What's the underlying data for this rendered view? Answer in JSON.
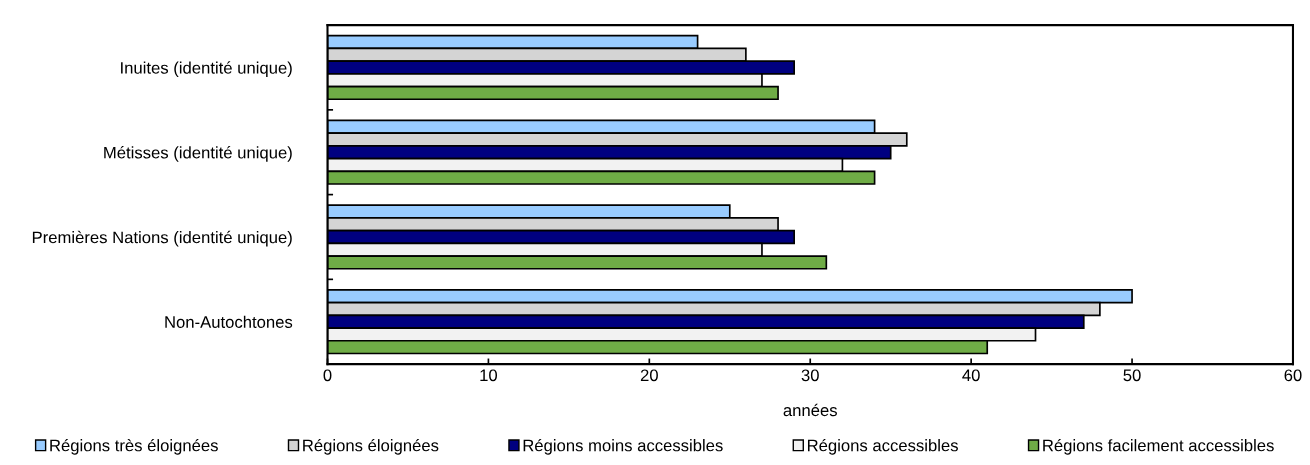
{
  "chart_data": {
    "type": "bar",
    "orientation": "horizontal",
    "xlabel": "années",
    "categories": [
      "Inuites (identité unique)",
      "Métisses (identité unique)",
      "Premières Nations (identité unique)",
      "Non-Autochtones"
    ],
    "series": [
      {
        "name": "Régions très éloignées",
        "color": "#99ccff",
        "values": [
          23,
          34,
          25,
          50
        ]
      },
      {
        "name": "Régions éloignées",
        "color": "#d4d4d4",
        "values": [
          26,
          36,
          28,
          48
        ]
      },
      {
        "name": "Régions moins accessibles",
        "color": "#000080",
        "values": [
          29,
          35,
          29,
          47
        ]
      },
      {
        "name": "Régions accessibles",
        "color": "#f2f2f2",
        "values": [
          27,
          32,
          27,
          44
        ]
      },
      {
        "name": "Régions facilement accessibles",
        "color": "#6fac46",
        "values": [
          28,
          34,
          31,
          41
        ]
      }
    ],
    "xlim": [
      0,
      60
    ],
    "xticks": [
      0,
      10,
      20,
      30,
      40,
      50,
      60
    ],
    "grid": false,
    "legend": "bottom"
  }
}
